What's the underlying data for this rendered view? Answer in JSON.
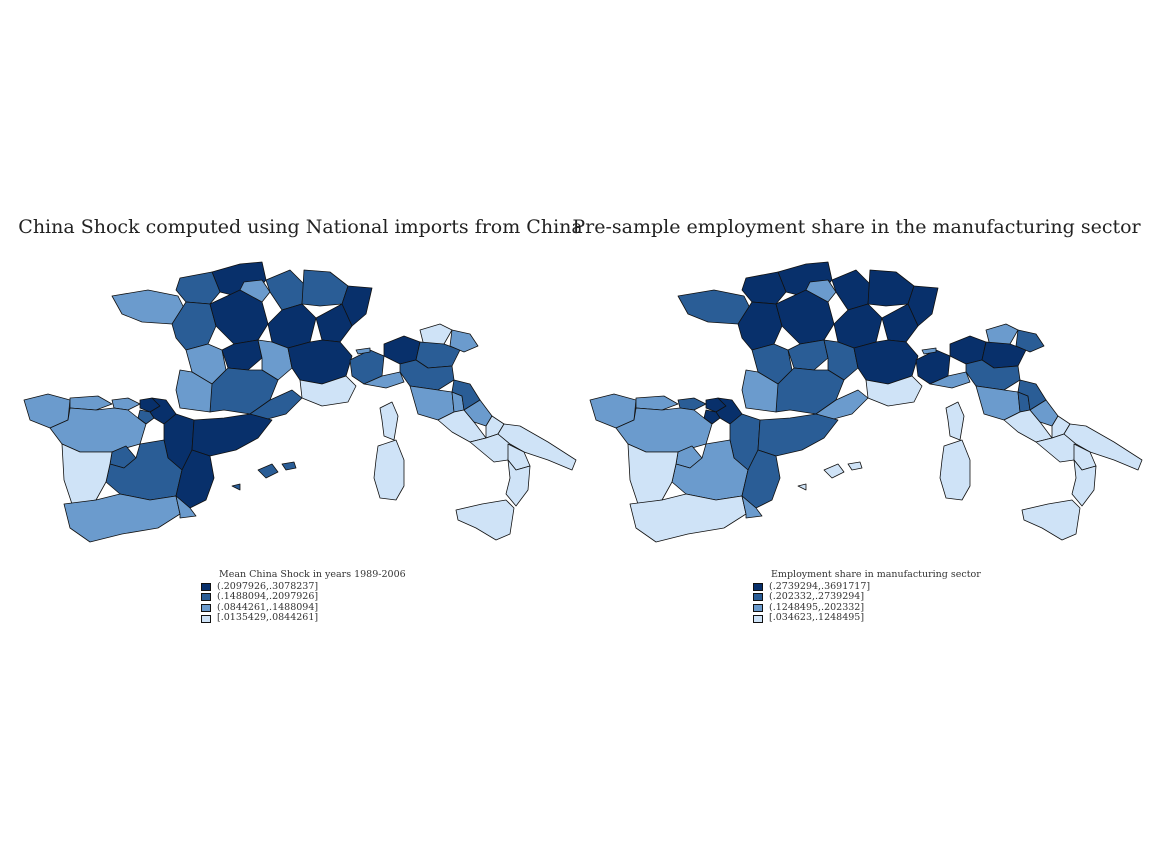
{
  "maps": [
    {
      "title": "China Shock computed using National imports from China",
      "legend_title": "Mean China Shock in years 1989-2006",
      "classes": [
        {
          "label": "(.2097926,.3078237]",
          "color": "#08306b"
        },
        {
          "label": "(.1488094,.2097926]",
          "color": "#2a5d96"
        },
        {
          "label": "(.0844261,.1488094]",
          "color": "#6b9bcd"
        },
        {
          "label": "[.0135429,.0844261]",
          "color": "#cfe3f7"
        }
      ],
      "region_classes": {
        "fr_north": 0,
        "fr_paris": 2,
        "fr_normandy": 1,
        "fr_bretagne": 2,
        "fr_pays_loire": 1,
        "fr_centre": 0,
        "fr_champagne": 1,
        "fr_lorraine": 1,
        "fr_alsace": 0,
        "fr_bourgogne": 0,
        "fr_franche": 0,
        "fr_poitou": 2,
        "fr_limousin": 0,
        "fr_auvergne": 2,
        "fr_rhone_alpes": 0,
        "fr_aquitaine": 2,
        "fr_midi_pyr": 1,
        "fr_languedoc": 1,
        "fr_paca": 3,
        "fr_corse": 3,
        "es_galicia": 2,
        "es_asturias": 2,
        "es_cantabria": 2,
        "es_pais_vasco": 0,
        "es_navarra": 0,
        "es_rioja": 1,
        "es_aragon": 0,
        "es_cataluna": 0,
        "es_castilla_leon": 2,
        "es_madrid": 1,
        "es_castilla_mancha": 1,
        "es_valencia": 0,
        "es_extremadura": 3,
        "es_andalucia": 2,
        "es_murcia": 2,
        "es_baleares": 1,
        "it_piemonte": 1,
        "it_aosta": 2,
        "it_lombardia": 0,
        "it_trentino": 3,
        "it_veneto": 1,
        "it_friuli": 2,
        "it_liguria": 2,
        "it_emilia": 1,
        "it_toscana": 2,
        "it_umbria": 2,
        "it_marche": 1,
        "it_lazio": 3,
        "it_abruzzo": 2,
        "it_molise": 3,
        "it_campania": 3,
        "it_puglia": 3,
        "it_basilicata": 3,
        "it_calabria": 3,
        "it_sicilia": 3,
        "it_sardegna": 3
      }
    },
    {
      "title": "Pre-sample employment share in the manufacturing sector",
      "legend_title": "Employment share in manufacturing sector",
      "classes": [
        {
          "label": "(.2739294,.3691717]",
          "color": "#08306b"
        },
        {
          "label": "(.202332,.2739294]",
          "color": "#2a5d96"
        },
        {
          "label": "(.1248495,.202332]",
          "color": "#6b9bcd"
        },
        {
          "label": "[.034623,.1248495]",
          "color": "#cfe3f7"
        }
      ],
      "region_classes": {
        "fr_north": 0,
        "fr_paris": 2,
        "fr_normandy": 0,
        "fr_bretagne": 1,
        "fr_pays_loire": 0,
        "fr_centre": 0,
        "fr_champagne": 0,
        "fr_lorraine": 0,
        "fr_alsace": 0,
        "fr_bourgogne": 0,
        "fr_franche": 0,
        "fr_poitou": 1,
        "fr_limousin": 1,
        "fr_auvergne": 1,
        "fr_rhone_alpes": 0,
        "fr_aquitaine": 2,
        "fr_midi_pyr": 1,
        "fr_languedoc": 2,
        "fr_paca": 3,
        "fr_corse": 3,
        "es_galicia": 2,
        "es_asturias": 2,
        "es_cantabria": 1,
        "es_pais_vasco": 0,
        "es_navarra": 0,
        "es_rioja": 0,
        "es_aragon": 1,
        "es_cataluna": 1,
        "es_castilla_leon": 2,
        "es_madrid": 2,
        "es_castilla_mancha": 2,
        "es_valencia": 1,
        "es_extremadura": 3,
        "es_andalucia": 3,
        "es_murcia": 2,
        "es_baleares": 3,
        "it_piemonte": 0,
        "it_aosta": 2,
        "it_lombardia": 0,
        "it_trentino": 2,
        "it_veneto": 0,
        "it_friuli": 1,
        "it_liguria": 2,
        "it_emilia": 1,
        "it_toscana": 2,
        "it_umbria": 1,
        "it_marche": 1,
        "it_lazio": 3,
        "it_abruzzo": 2,
        "it_molise": 3,
        "it_campania": 3,
        "it_puglia": 3,
        "it_basilicata": 3,
        "it_calabria": 3,
        "it_sicilia": 3,
        "it_sardegna": 3
      }
    }
  ]
}
